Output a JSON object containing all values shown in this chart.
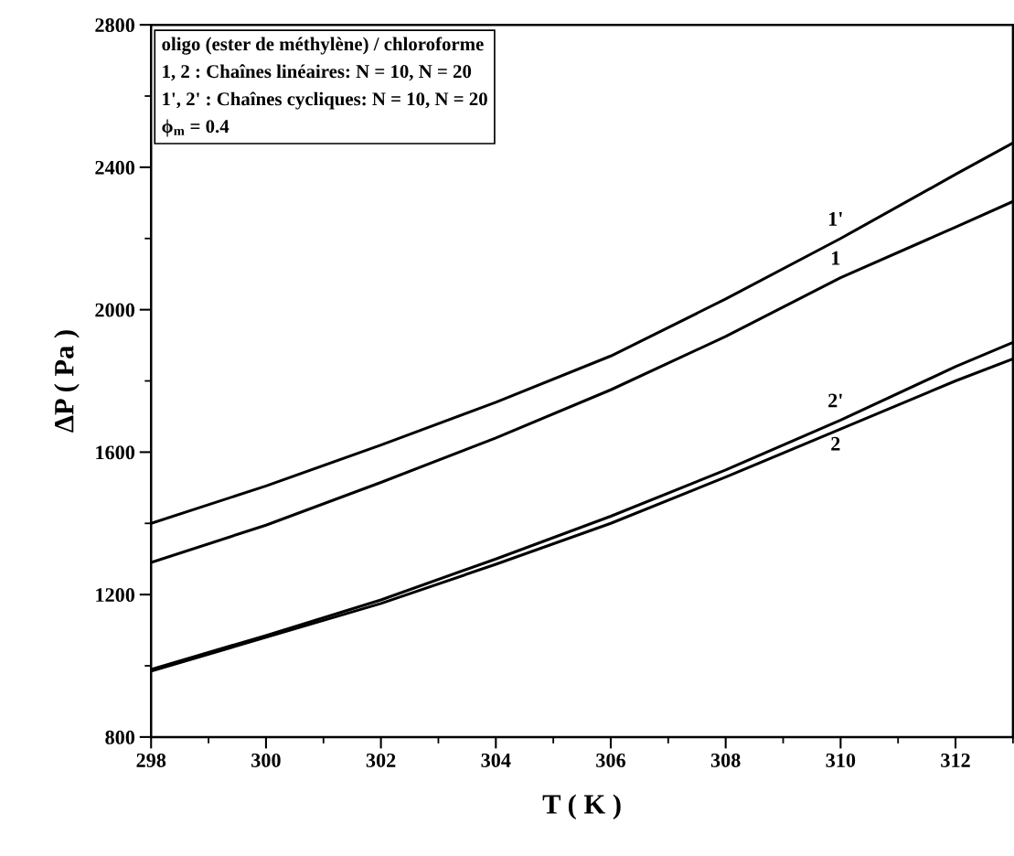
{
  "chart_data": {
    "type": "line",
    "xlabel": "T ( K )",
    "ylabel": "ΔP ( Pa )",
    "x": [
      298,
      300,
      302,
      304,
      306,
      308,
      310,
      312,
      313
    ],
    "series": [
      {
        "name": "1'",
        "color": "#000000",
        "values": [
          1400,
          1505,
          1620,
          1740,
          1870,
          2030,
          2200,
          2380,
          2468
        ]
      },
      {
        "name": "1",
        "color": "#000000",
        "values": [
          1290,
          1395,
          1515,
          1640,
          1775,
          1925,
          2090,
          2232,
          2304
        ]
      },
      {
        "name": "2'",
        "color": "#000000",
        "values": [
          990,
          1085,
          1185,
          1300,
          1420,
          1550,
          1690,
          1840,
          1908
        ]
      },
      {
        "name": "2",
        "color": "#000000",
        "values": [
          985,
          1080,
          1175,
          1285,
          1400,
          1530,
          1665,
          1800,
          1862
        ]
      }
    ],
    "annotations": [
      "oligo (ester de méthylène) / chloroforme",
      "1, 2 : Chaînes linéaires: N = 10, N = 20",
      "1', 2' : Chaînes cycliques: N = 10, N = 20",
      "ϕ$_{m}$ = 0.4"
    ],
    "xlim": [
      298,
      313
    ],
    "ylim": [
      800,
      2800
    ],
    "xticks": [
      298,
      300,
      302,
      304,
      306,
      308,
      310,
      312
    ],
    "yticks": [
      800,
      1200,
      1600,
      2000,
      2400,
      2800
    ],
    "grid": false,
    "legend": false,
    "marker": "none",
    "line_style": "solid"
  }
}
